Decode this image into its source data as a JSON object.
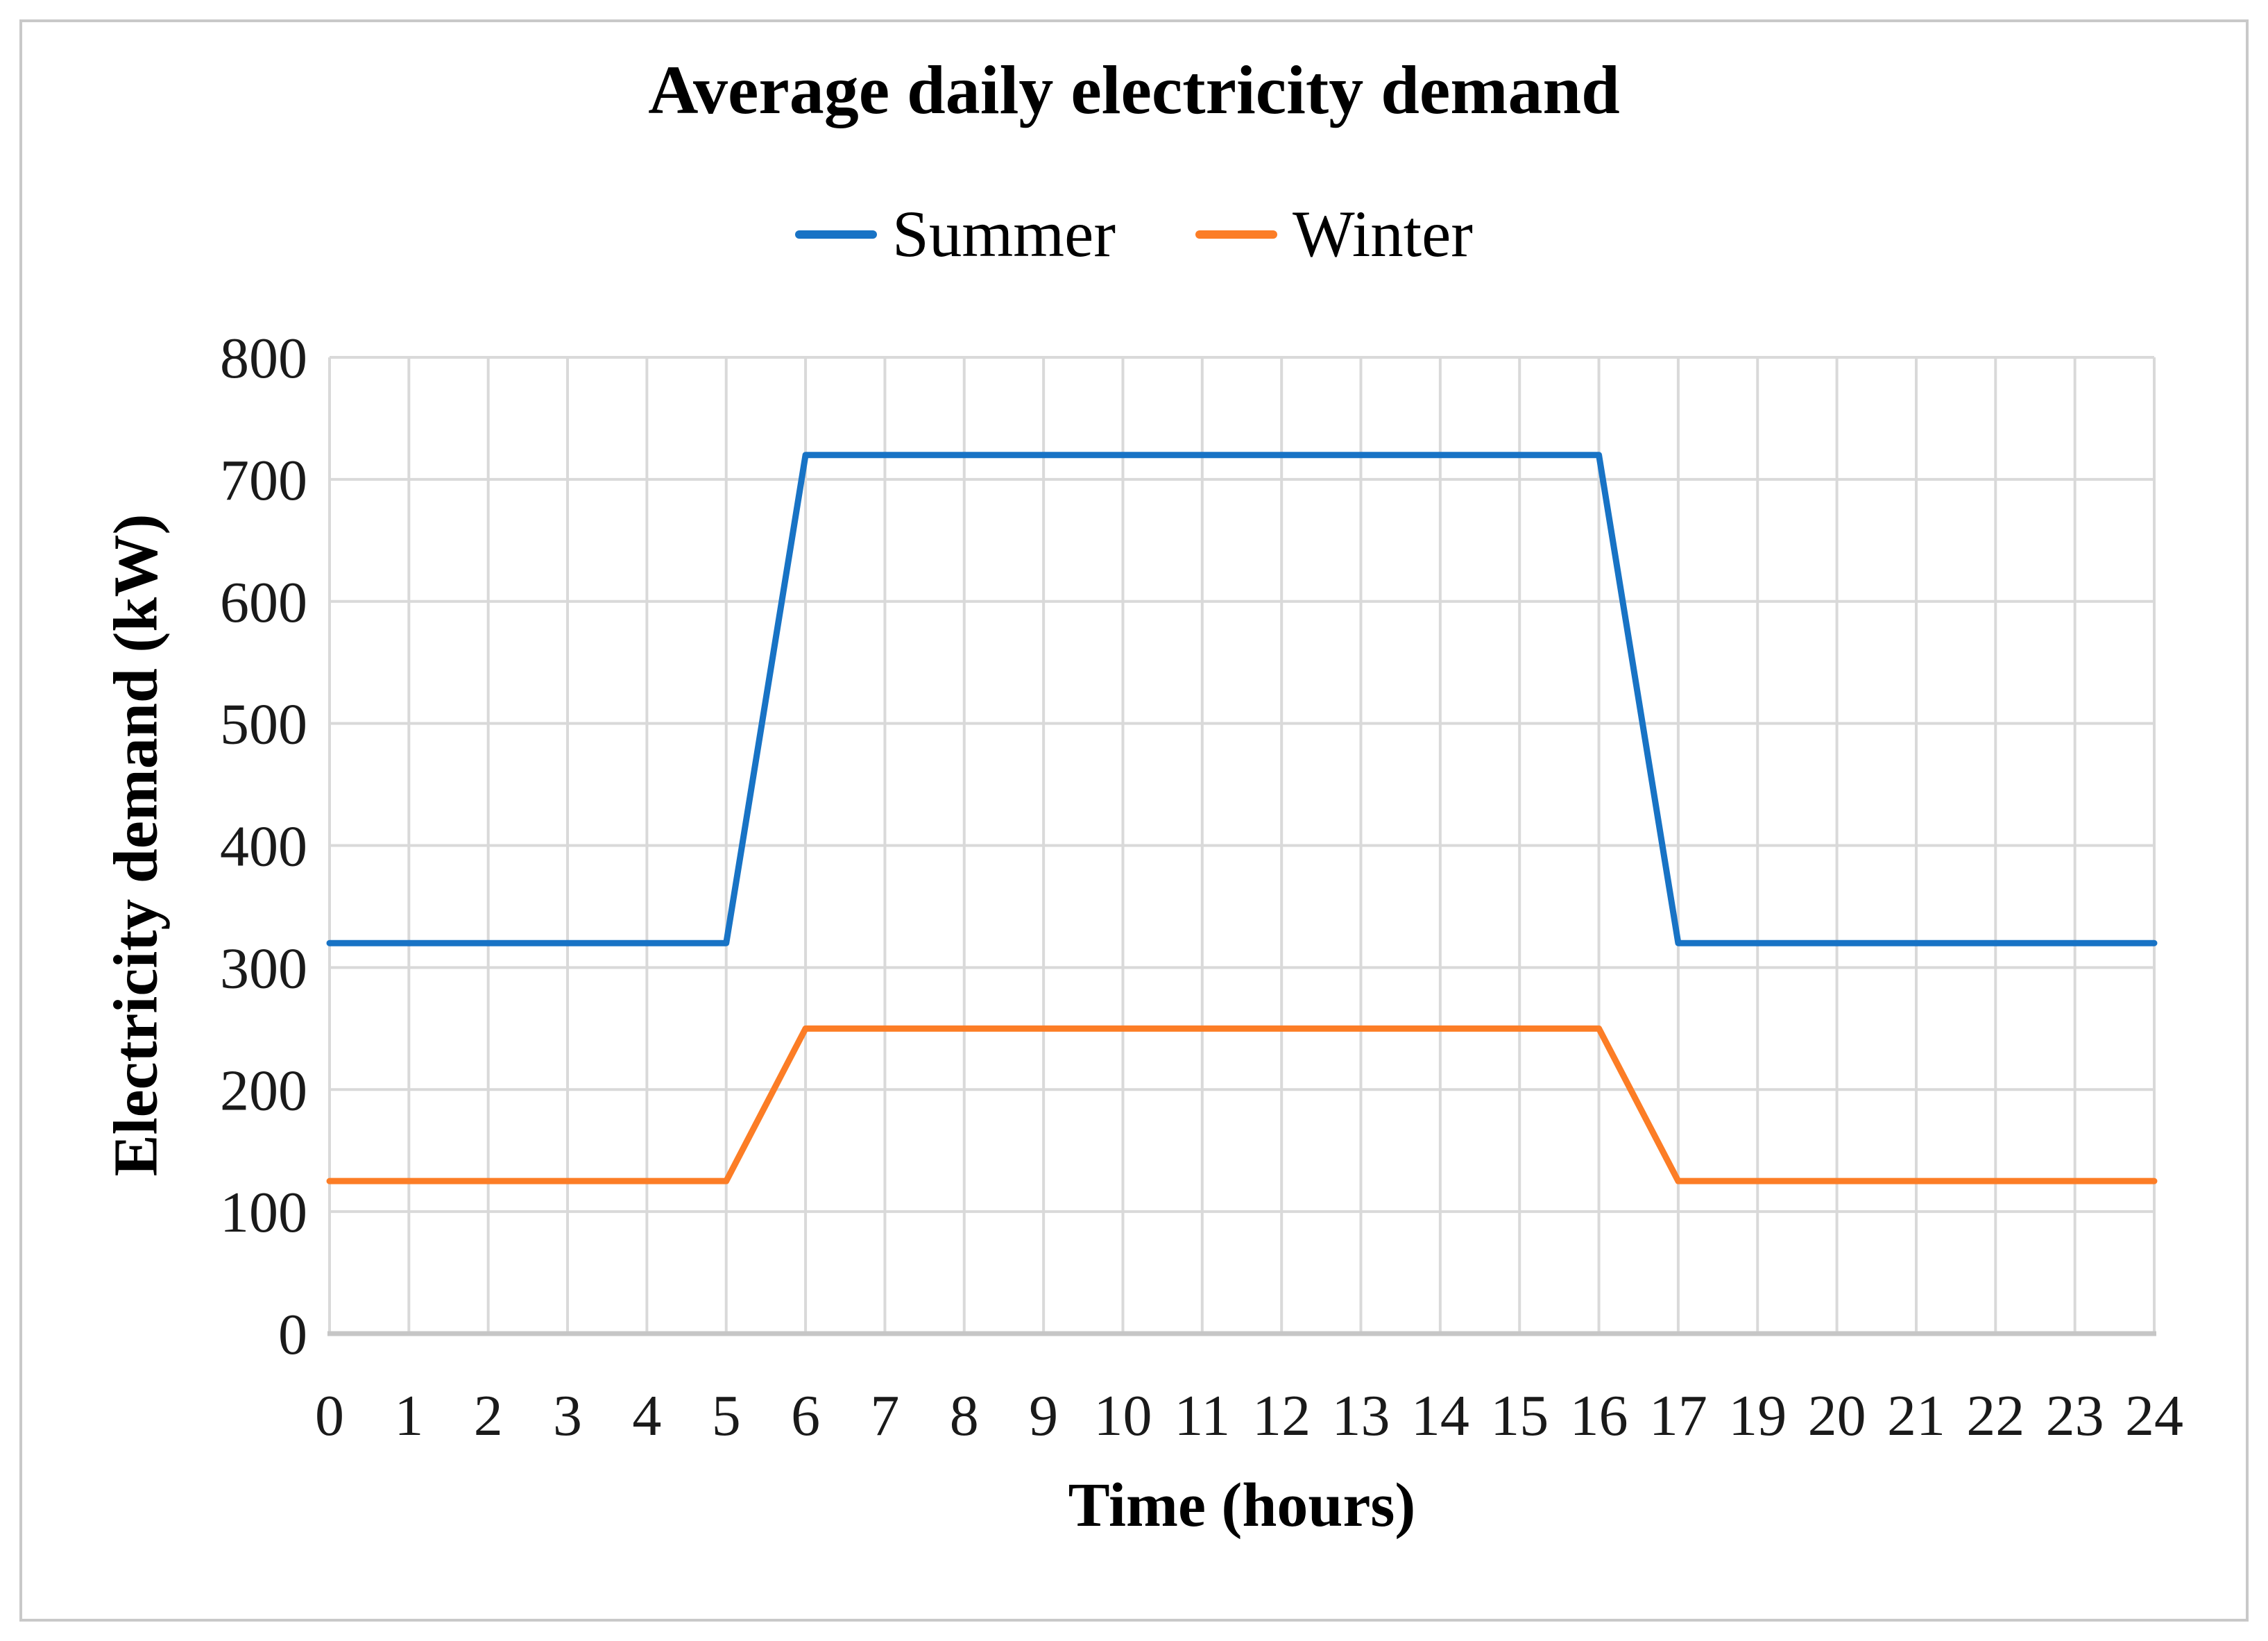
{
  "figure": {
    "background": "#ffffff",
    "border_color": "#c9c9c9"
  },
  "chart_data": {
    "type": "line",
    "title": "Average daily electricity demand",
    "xlabel": "Time (hours)",
    "ylabel": "Electricity demand (kW)",
    "categories": [
      "0",
      "1",
      "2",
      "3",
      "4",
      "5",
      "6",
      "7",
      "8",
      "9",
      "10",
      "11",
      "12",
      "13",
      "14",
      "15",
      "16",
      "17",
      "19",
      "20",
      "21",
      "22",
      "23",
      "24"
    ],
    "series": [
      {
        "name": "Summer",
        "color": "#1873c5",
        "values": [
          320,
          320,
          320,
          320,
          320,
          320,
          720,
          720,
          720,
          720,
          720,
          720,
          720,
          720,
          720,
          720,
          720,
          320,
          320,
          320,
          320,
          320,
          320,
          320
        ]
      },
      {
        "name": "Winter",
        "color": "#fc7d26",
        "values": [
          125,
          125,
          125,
          125,
          125,
          125,
          250,
          250,
          250,
          250,
          250,
          250,
          250,
          250,
          250,
          250,
          250,
          125,
          125,
          125,
          125,
          125,
          125,
          125
        ]
      }
    ],
    "ylim": [
      0,
      800
    ],
    "yticks": [
      0,
      100,
      200,
      300,
      400,
      500,
      600,
      700,
      800
    ],
    "grid": true,
    "legend_position": "top-center",
    "gridline_color": "#d9d9d9",
    "axis_line_color": "#c6c6c6",
    "line_width": 9
  }
}
